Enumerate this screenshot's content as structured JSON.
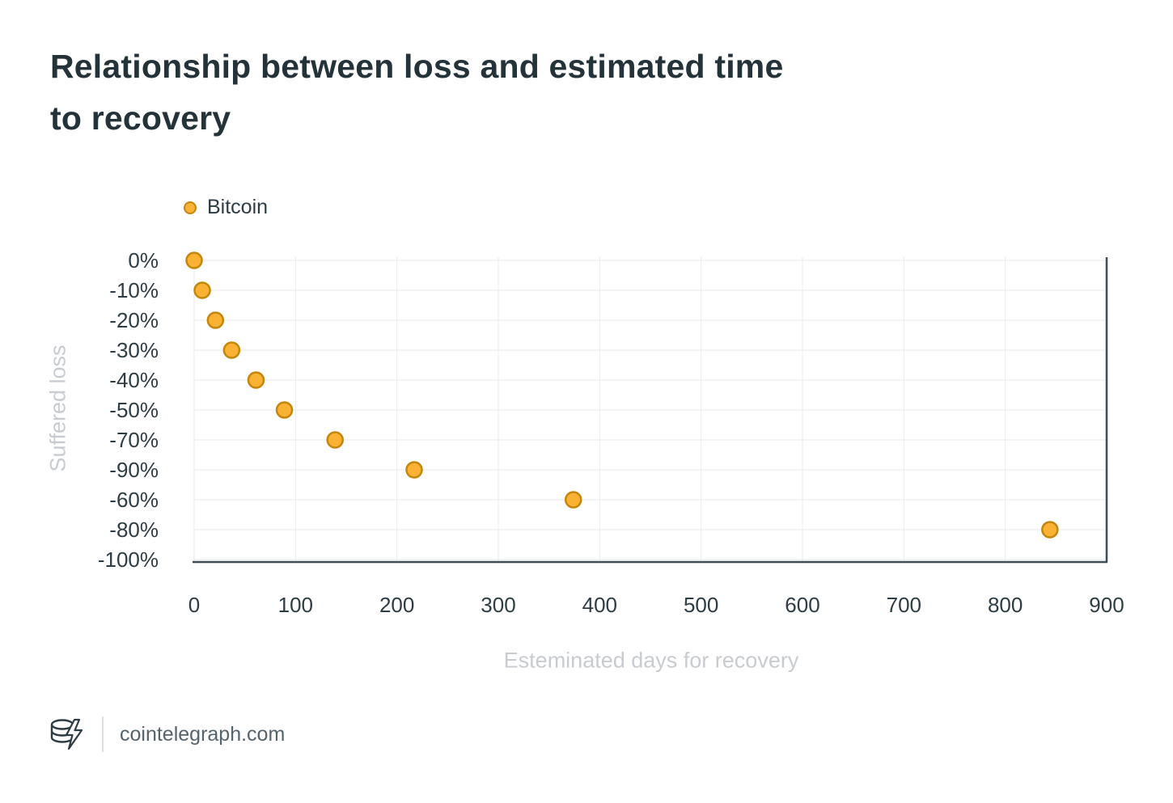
{
  "header": {
    "title_line1": "Relationship between loss and estimated time",
    "title_line2": "to recovery"
  },
  "chart_data": {
    "type": "scatter",
    "title": "Relationship between loss and estimated time to recovery",
    "xlabel": "Esteminated days for recovery",
    "ylabel": "Suffered loss",
    "x_range": [
      0,
      900
    ],
    "x_ticks": [
      0,
      100,
      200,
      300,
      400,
      500,
      600,
      700,
      800,
      900
    ],
    "y_categories": [
      "0%",
      "-10%",
      "-20%",
      "-30%",
      "-40%",
      "-50%",
      "-70%",
      "-90%",
      "-60%",
      "-80%",
      "-100%"
    ],
    "grid": true,
    "legend_position": "top-left",
    "series": [
      {
        "name": "Bitcoin",
        "marker_fill": "#F9B234",
        "marker_stroke": "#C4860B",
        "points": [
          {
            "days": 0,
            "loss": "0%"
          },
          {
            "days": 8,
            "loss": "-10%"
          },
          {
            "days": 21,
            "loss": "-20%"
          },
          {
            "days": 37,
            "loss": "-30%"
          },
          {
            "days": 61,
            "loss": "-40%"
          },
          {
            "days": 89,
            "loss": "-50%"
          },
          {
            "days": 139,
            "loss": "-70%"
          },
          {
            "days": 217,
            "loss": "-90%"
          },
          {
            "days": 374,
            "loss": "-60%"
          },
          {
            "days": 844,
            "loss": "-80%"
          }
        ]
      }
    ]
  },
  "footer": {
    "site": "cointelegraph.com"
  },
  "colors": {
    "accent": "#F9B234",
    "marker_stroke": "#C4860B",
    "title_text": "#243239",
    "tick_text": "#2E3C44",
    "muted_text": "#C8CCD0",
    "grid": "#E8EAEC",
    "axis": "#3F4D56"
  }
}
